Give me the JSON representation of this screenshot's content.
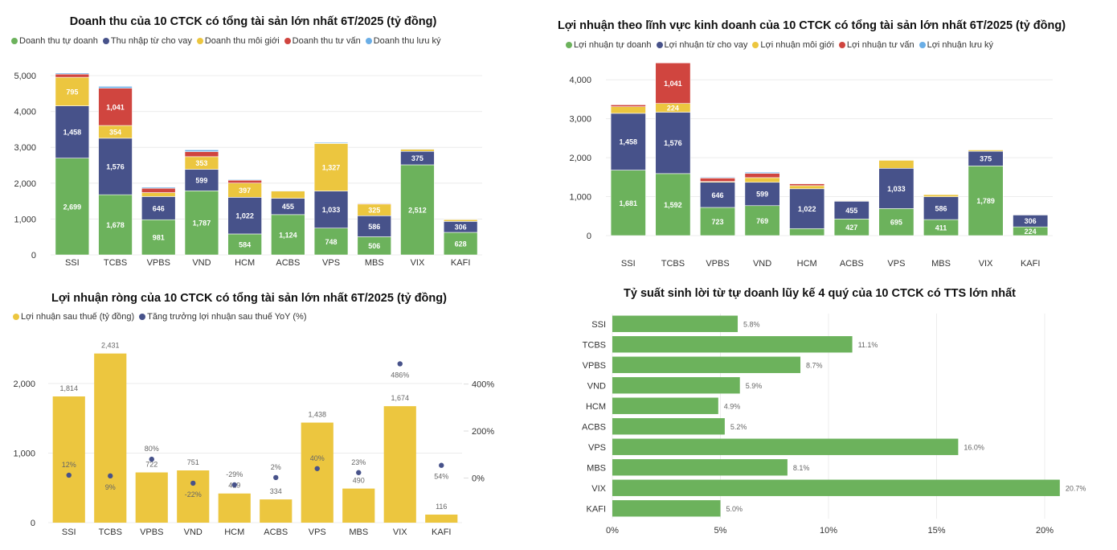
{
  "colors": {
    "green": "#6cb25c",
    "navy": "#47528a",
    "yellow": "#ecc63f",
    "red": "#d0453f",
    "lightblue": "#6aaee6",
    "grid": "#ececec",
    "axis_text": "#333333",
    "data_label_dark": "#666666"
  },
  "chart_data": [
    {
      "id": "revenue",
      "type": "bar",
      "stacked": true,
      "title": "Doanh thu của 10 CTCK có tổng tài sản lớn nhất 6T/2025 (tỷ đồng)",
      "xlabel": "",
      "ylabel": "",
      "ylim": [
        0,
        5000
      ],
      "yticks": [
        "0",
        "1,000",
        "2,000",
        "3,000",
        "4,000",
        "5,000"
      ],
      "ytick_values": [
        0,
        1000,
        2000,
        3000,
        4000,
        5000
      ],
      "grid": true,
      "legend_position": "top-left",
      "categories": [
        "SSI",
        "TCBS",
        "VPBS",
        "VND",
        "HCM",
        "ACBS",
        "VPS",
        "MBS",
        "VIX",
        "KAFI"
      ],
      "series": [
        {
          "name": "Doanh thu tự doanh",
          "color": "#6cb25c",
          "values": [
            2699,
            1678,
            981,
            1787,
            584,
            1124,
            748,
            506,
            2512,
            628
          ],
          "labels": [
            "2,699",
            "1,678",
            "981",
            "1,787",
            "584",
            "1,124",
            "748",
            "506",
            "2,512",
            "628"
          ]
        },
        {
          "name": "Thu nhập từ cho vay",
          "color": "#47528a",
          "values": [
            1458,
            1576,
            646,
            599,
            1022,
            455,
            1033,
            586,
            375,
            306
          ],
          "labels": [
            "1,458",
            "1,576",
            "646",
            "599",
            "1,022",
            "455",
            "1,033",
            "586",
            "375",
            "306"
          ]
        },
        {
          "name": "Doanh thu môi giới",
          "color": "#ecc63f",
          "values": [
            795,
            354,
            110,
            353,
            397,
            200,
            1327,
            325,
            60,
            50
          ],
          "labels": [
            "795",
            "354",
            "",
            "353",
            "397",
            "",
            "1,327",
            "325",
            "",
            ""
          ]
        },
        {
          "name": "Doanh thu tư vấn",
          "color": "#d0453f",
          "values": [
            90,
            1041,
            120,
            140,
            80,
            0,
            10,
            20,
            0,
            0
          ],
          "labels": [
            "",
            "1,041",
            "",
            "",
            "",
            "",
            "",
            "",
            "",
            ""
          ]
        },
        {
          "name": "Doanh thu lưu ký",
          "color": "#6aaee6",
          "values": [
            30,
            50,
            30,
            50,
            20,
            15,
            25,
            15,
            15,
            10
          ],
          "labels": [
            "",
            "",
            "",
            "",
            "",
            "",
            "",
            "",
            "",
            ""
          ]
        }
      ]
    },
    {
      "id": "profit-by-segment",
      "type": "bar",
      "stacked": true,
      "title": "Lợi nhuận theo lĩnh vực kinh doanh của 10 CTCK có tổng tài sản lớn nhất 6T/2025 (tỷ đồng)",
      "xlabel": "",
      "ylabel": "",
      "ylim": [
        0,
        4500
      ],
      "yticks": [
        "0",
        "1,000",
        "2,000",
        "3,000",
        "4,000"
      ],
      "ytick_values": [
        0,
        1000,
        2000,
        3000,
        4000
      ],
      "grid": true,
      "legend_position": "top-left",
      "categories": [
        "SSI",
        "TCBS",
        "VPBS",
        "VND",
        "HCM",
        "ACBS",
        "VPS",
        "MBS",
        "VIX",
        "KAFI"
      ],
      "series": [
        {
          "name": "Lợi nhuận tự doanh",
          "color": "#6cb25c",
          "values": [
            1681,
            1592,
            723,
            769,
            180,
            427,
            695,
            411,
            1789,
            224
          ],
          "labels": [
            "1,681",
            "1,592",
            "723",
            "769",
            "",
            "427",
            "695",
            "411",
            "1,789",
            "224"
          ]
        },
        {
          "name": "Lợi nhuận từ cho vay",
          "color": "#47528a",
          "values": [
            1458,
            1576,
            646,
            599,
            1022,
            455,
            1033,
            586,
            375,
            306
          ],
          "labels": [
            "1,458",
            "1,576",
            "646",
            "599",
            "1,022",
            "455",
            "1,033",
            "586",
            "375",
            "306"
          ]
        },
        {
          "name": "Lợi nhuận môi giới",
          "color": "#ecc63f",
          "values": [
            170,
            224,
            20,
            120,
            80,
            20,
            210,
            60,
            40,
            10
          ],
          "labels": [
            "",
            "224",
            "",
            "",
            "",
            "",
            "",
            "",
            "",
            ""
          ]
        },
        {
          "name": "Lợi nhuận tư vấn",
          "color": "#d0453f",
          "values": [
            50,
            1041,
            90,
            110,
            50,
            0,
            0,
            0,
            0,
            0
          ],
          "labels": [
            "",
            "1,041",
            "",
            "",
            "",
            "",
            "",
            "",
            "",
            ""
          ]
        },
        {
          "name": "Lợi nhuận lưu ký",
          "color": "#6aaee6",
          "values": [
            10,
            0,
            20,
            30,
            10,
            5,
            5,
            5,
            5,
            0
          ],
          "labels": [
            "",
            "",
            "",
            "",
            "",
            "",
            "",
            "",
            "",
            ""
          ]
        }
      ]
    },
    {
      "id": "net-profit",
      "type": "bar",
      "combo": "bar+scatter",
      "title": "Lợi nhuận ròng của 10 CTCK có tổng tài sản lớn nhất 6T/2025 (tỷ đồng)",
      "xlabel": "",
      "ylabel": "",
      "ylim": [
        0,
        2600
      ],
      "yticks": [
        "0",
        "1,000",
        "2,000"
      ],
      "ytick_values": [
        0,
        1000,
        2000
      ],
      "y2lim": [
        -190,
        580
      ],
      "y2ticks": [
        "0%",
        "200%",
        "400%"
      ],
      "y2tick_values": [
        0,
        200,
        400
      ],
      "grid": true,
      "legend_position": "top-left",
      "categories": [
        "SSI",
        "TCBS",
        "VPBS",
        "VND",
        "HCM",
        "ACBS",
        "VPS",
        "MBS",
        "VIX",
        "KAFI"
      ],
      "series": [
        {
          "name": "Lợi nhuận sau thuế (tỷ đồng)",
          "color": "#ecc63f",
          "kind": "bar",
          "axis": "left",
          "values": [
            1814,
            2431,
            722,
            751,
            419,
            334,
            1438,
            490,
            1674,
            116
          ],
          "labels": [
            "1,814",
            "2,431",
            "722",
            "751",
            "419",
            "334",
            "1,438",
            "490",
            "1,674",
            "116"
          ]
        },
        {
          "name": "Tăng trưởng lợi nhuận sau thuế YoY (%)",
          "color": "#47528a",
          "kind": "scatter",
          "axis": "right",
          "values": [
            12,
            9,
            80,
            -22,
            -29,
            2,
            40,
            23,
            486,
            54
          ],
          "labels": [
            "12%",
            "9%",
            "80%",
            "-22%",
            "-29%",
            "2%",
            "40%",
            "23%",
            "486%",
            "54%"
          ],
          "label_pos": [
            "above",
            "below",
            "above",
            "below",
            "above",
            "above",
            "above",
            "above",
            "below",
            "below"
          ]
        }
      ]
    },
    {
      "id": "prop-trading-yield",
      "type": "bar",
      "orientation": "horizontal",
      "title": "Tỷ suất sinh lời từ tự doanh lũy kế 4 quý của 10 CTCK có TTS lớn nhất",
      "xlabel": "",
      "ylabel": "",
      "xlim": [
        0,
        22.5
      ],
      "xticks": [
        "0%",
        "5%",
        "10%",
        "15%",
        "20%"
      ],
      "xtick_values": [
        0,
        5,
        10,
        15,
        20
      ],
      "grid": true,
      "categories": [
        "SSI",
        "TCBS",
        "VPBS",
        "VND",
        "HCM",
        "ACBS",
        "VPS",
        "MBS",
        "VIX",
        "KAFI"
      ],
      "series": [
        {
          "name": "Tỷ suất sinh lời",
          "color": "#6cb25c",
          "values": [
            5.8,
            11.1,
            8.7,
            5.9,
            4.9,
            5.2,
            16.0,
            8.1,
            20.7,
            5.0
          ],
          "labels": [
            "5.8%",
            "11.1%",
            "8.7%",
            "5.9%",
            "4.9%",
            "5.2%",
            "16.0%",
            "8.1%",
            "20.7%",
            "5.0%"
          ]
        }
      ]
    }
  ]
}
